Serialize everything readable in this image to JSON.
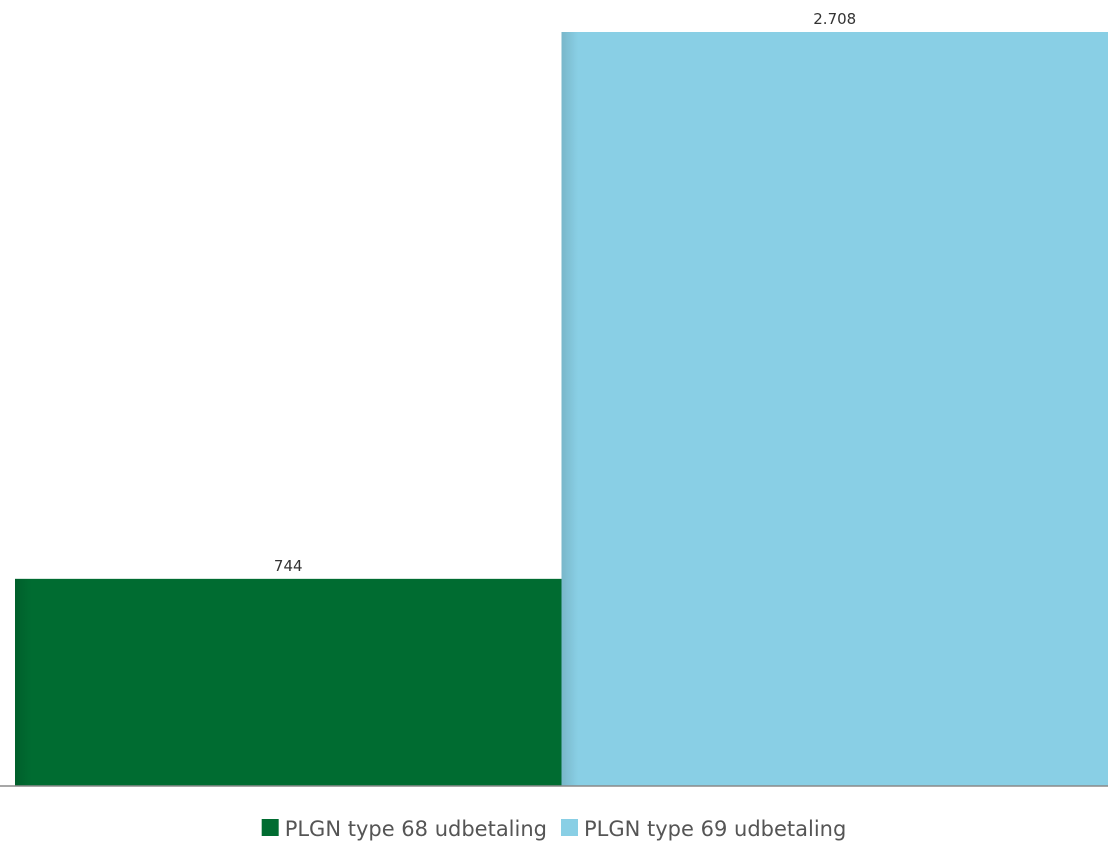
{
  "chart_data": {
    "type": "bar",
    "categories": [
      null
    ],
    "series": [
      {
        "name": "PLGN type 68 udbetaling",
        "color": "#006c31",
        "values": [
          744
        ],
        "value_labels": [
          "744"
        ]
      },
      {
        "name": "PLGN type 69 udbetaling",
        "color": "#89cfe5",
        "values": [
          2708
        ],
        "value_labels": [
          "2.708"
        ]
      }
    ],
    "ylim": [
      0,
      2708
    ]
  }
}
